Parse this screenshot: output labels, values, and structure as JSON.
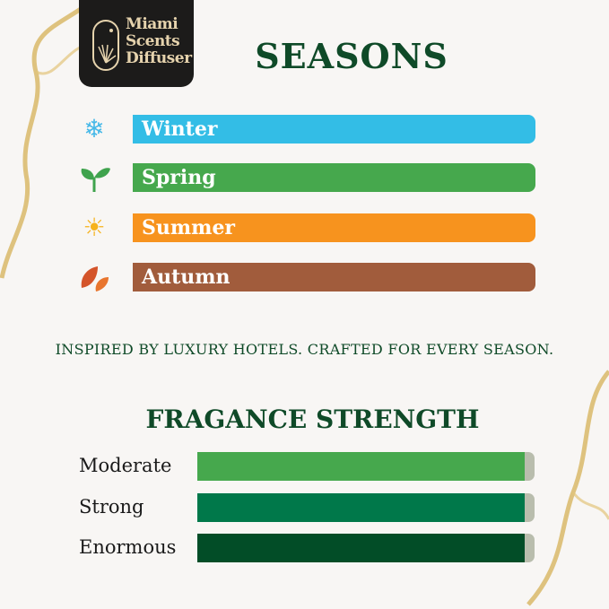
{
  "brand": {
    "name_line1": "Miami",
    "name_line2": "Scents",
    "name_line3": "Diffuser"
  },
  "title": "SEASONS",
  "seasons": [
    {
      "label": "Winter",
      "icon": "snowflake-icon",
      "color": "#33bde6"
    },
    {
      "label": "Spring",
      "icon": "sprout-icon",
      "color": "#46a84d"
    },
    {
      "label": "Summer",
      "icon": "sun-icon",
      "color": "#f7931e"
    },
    {
      "label": "Autumn",
      "icon": "autumn-leaves-icon",
      "color": "#a15c3c"
    }
  ],
  "tagline": "INSPIRED BY LUXURY HOTELS. CRAFTED FOR EVERY SEASON.",
  "strength_title": "FRAGANCE STRENGTH",
  "strength": [
    {
      "label": "Moderate",
      "fill": 0.97,
      "color": "#46a84d"
    },
    {
      "label": "Strong",
      "fill": 0.97,
      "color": "#00784a"
    },
    {
      "label": "Enormous",
      "fill": 0.97,
      "color": "#024d27"
    }
  ]
}
